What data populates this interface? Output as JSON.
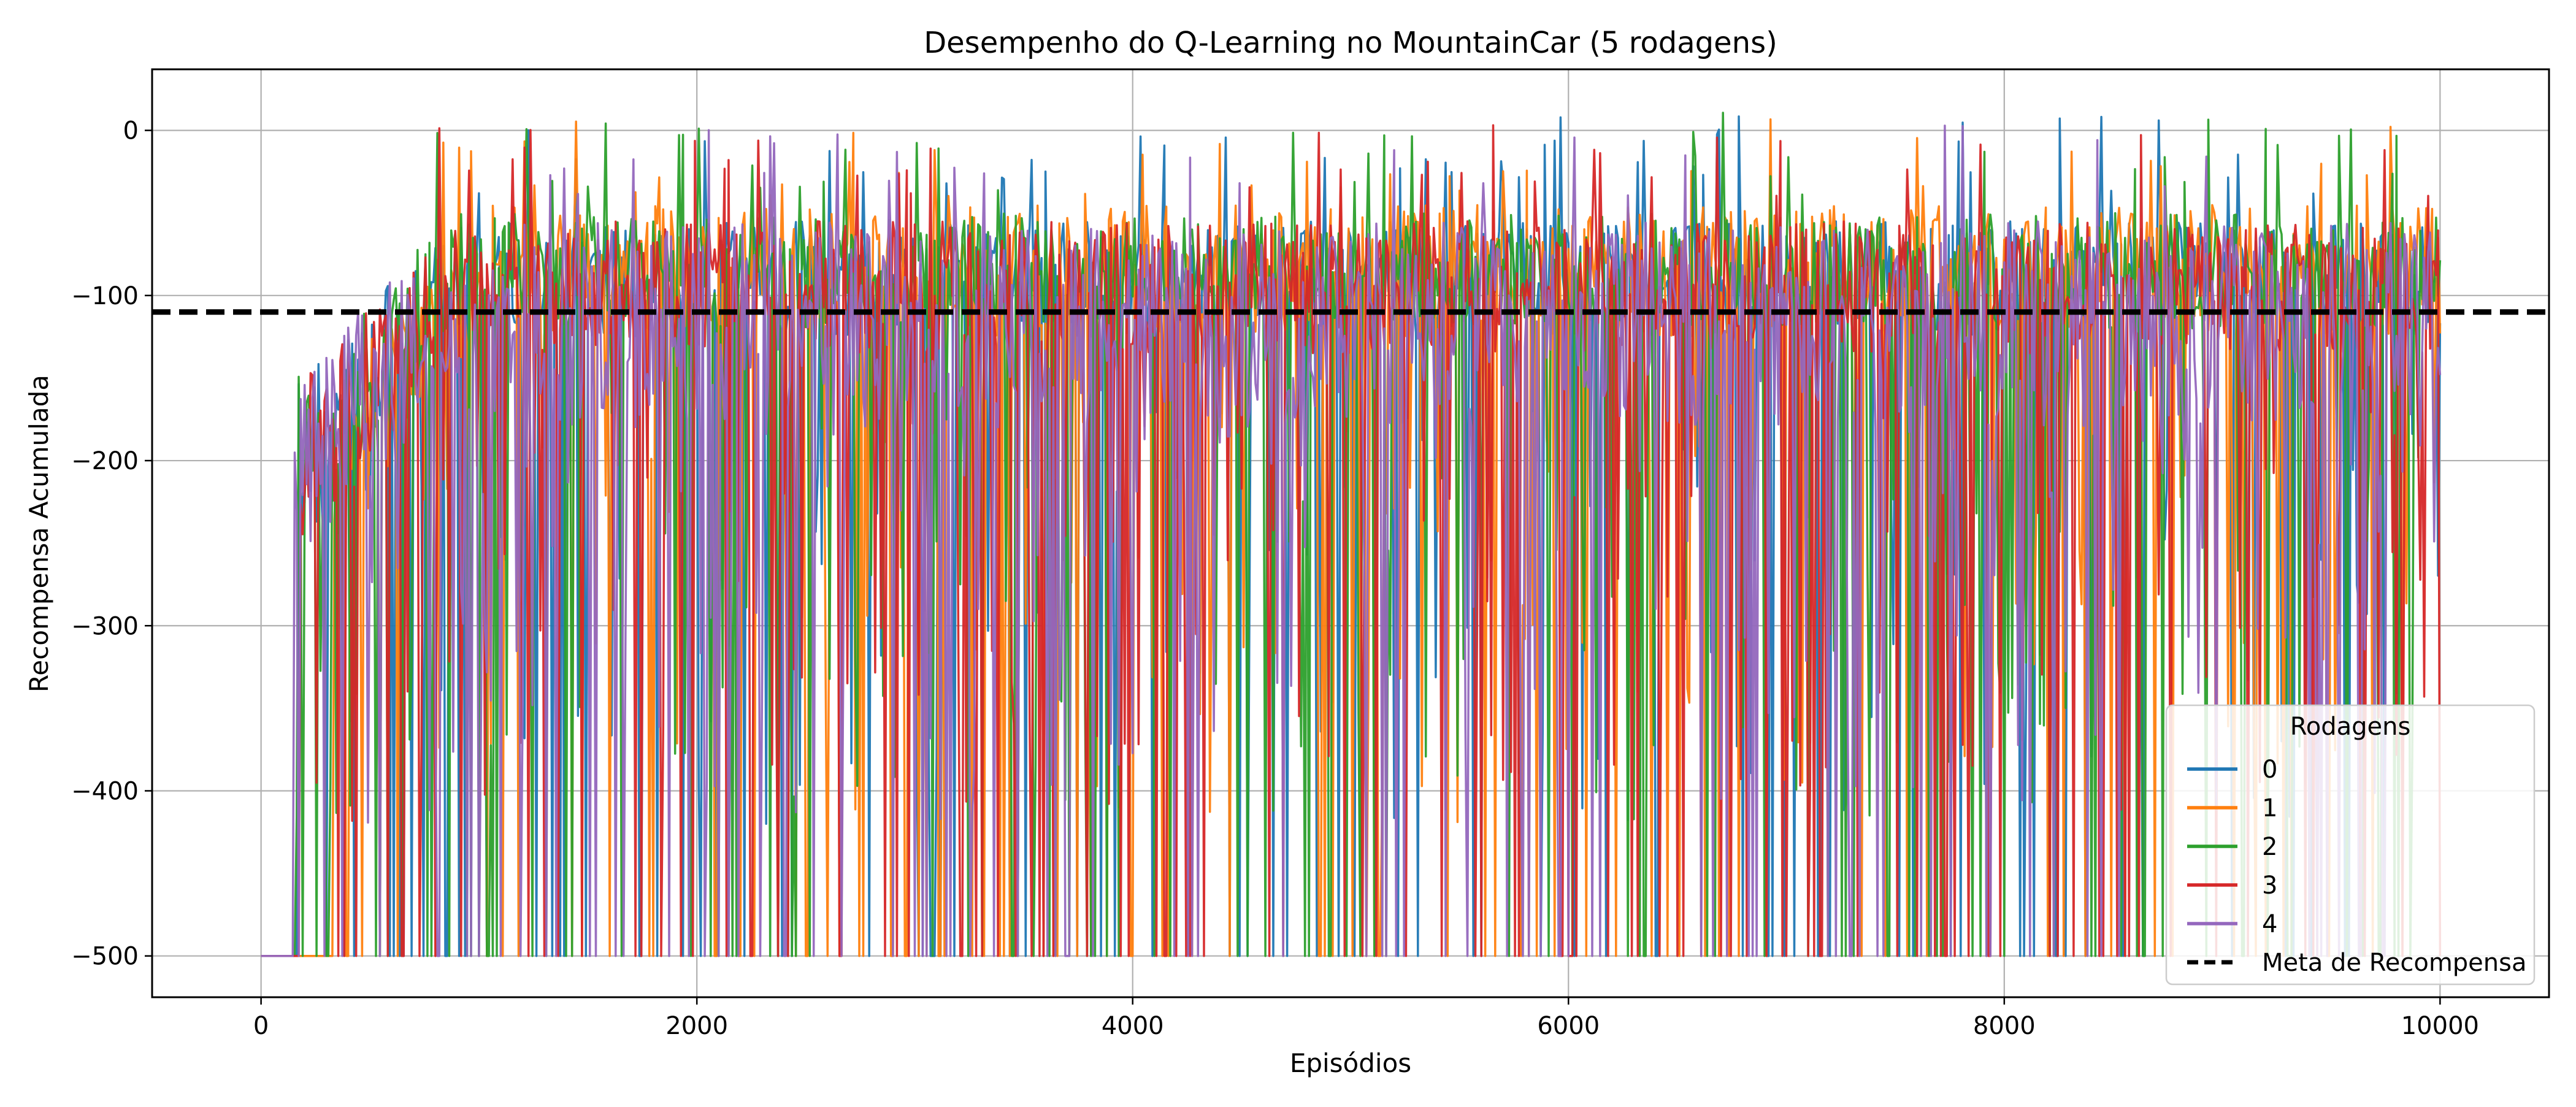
{
  "chart_data": {
    "type": "line",
    "title": "Desempenho do Q-Learning no MountainCar (5 rodagens)",
    "xlabel": "Episódios",
    "ylabel": "Recompensa Acumulada",
    "xlim": [
      -500,
      10500
    ],
    "ylim": [
      -525,
      37
    ],
    "xticks": [
      0,
      2000,
      4000,
      6000,
      8000,
      10000
    ],
    "xtick_labels": [
      "0",
      "2000",
      "4000",
      "6000",
      "8000",
      "10000"
    ],
    "yticks": [
      0,
      -100,
      -200,
      -300,
      -400,
      -500
    ],
    "ytick_labels": [
      "0",
      "−100",
      "−200",
      "−300",
      "−400",
      "−500"
    ],
    "grid": true,
    "episodes": 10000,
    "reward_floor": -500,
    "legend_title": "Rodagens",
    "legend_position": "lower right",
    "series": [
      {
        "name": "0",
        "color": "#1f77b4",
        "start_episode": 160,
        "peak": 10,
        "band": [
          -55,
          -125
        ]
      },
      {
        "name": "1",
        "color": "#ff7f0e",
        "start_episode": 330,
        "peak": 8,
        "band": [
          -45,
          -125
        ]
      },
      {
        "name": "2",
        "color": "#2ca02c",
        "start_episode": 160,
        "peak": 13,
        "band": [
          -50,
          -120
        ]
      },
      {
        "name": "3",
        "color": "#d62728",
        "start_episode": 180,
        "peak": 7,
        "band": [
          -55,
          -135
        ]
      },
      {
        "name": "4",
        "color": "#9467bd",
        "start_episode": 150,
        "peak": 8,
        "band": [
          -55,
          -180
        ]
      }
    ],
    "reference_line": {
      "name": "Meta de Recompensa",
      "y": -110,
      "color": "#000000",
      "style": "dashed"
    }
  }
}
